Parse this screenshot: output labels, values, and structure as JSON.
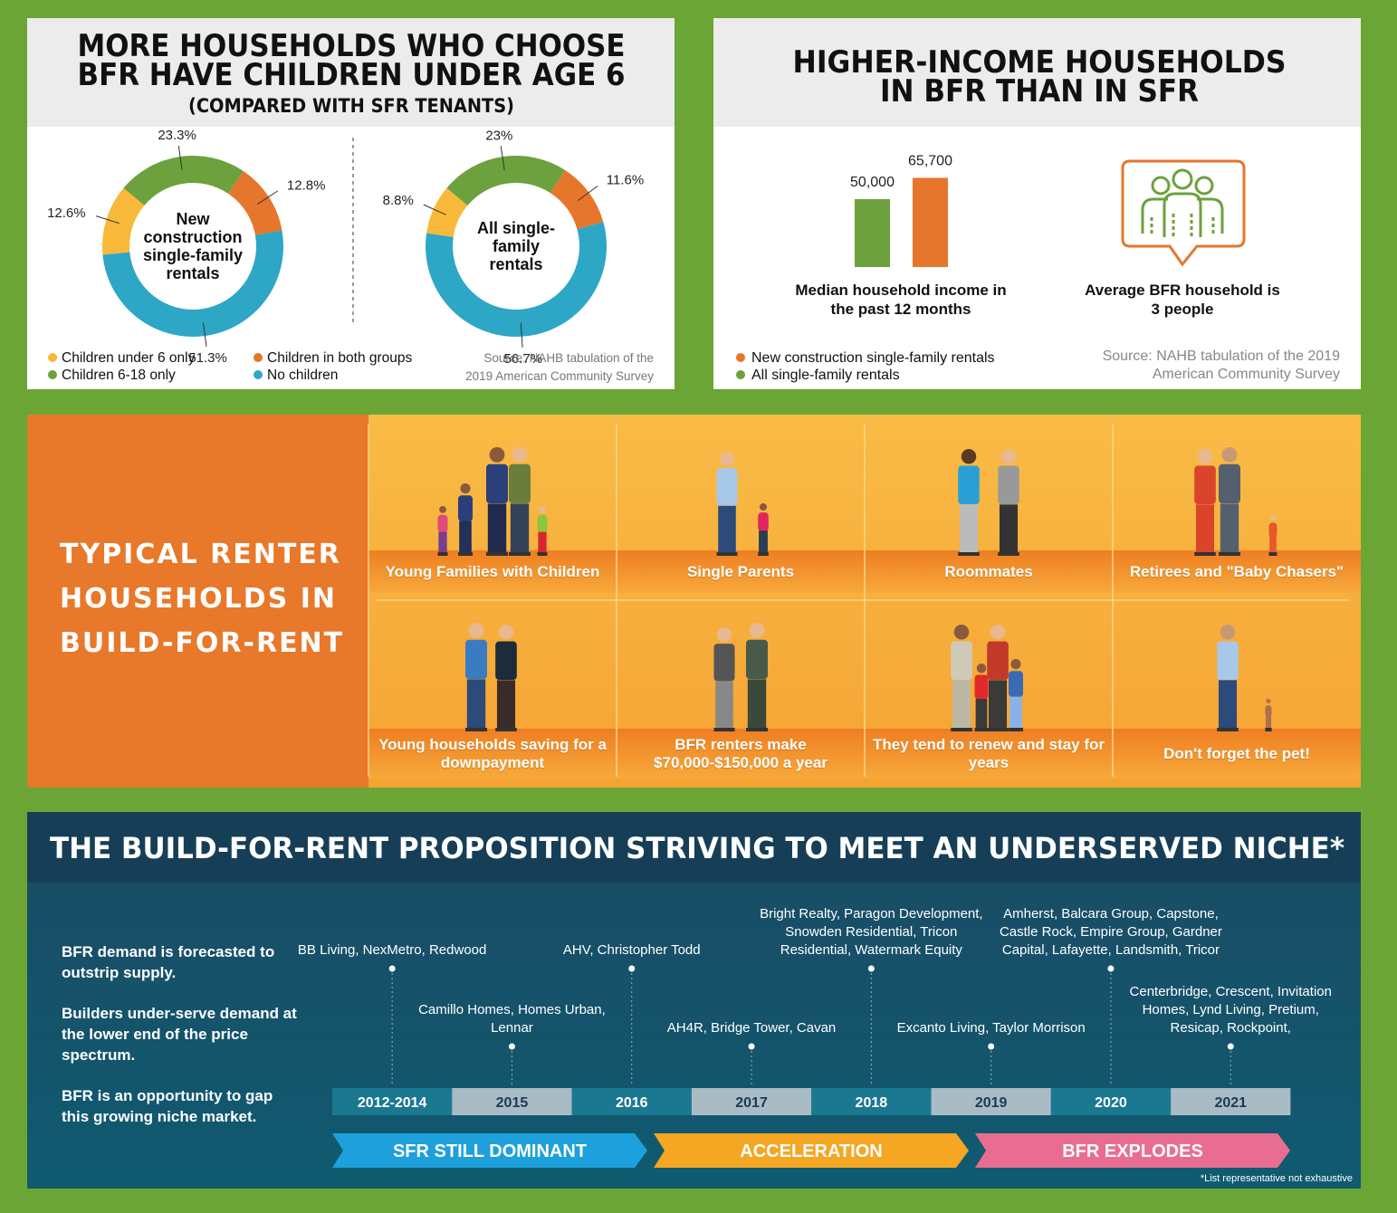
{
  "panels": [
    {
      "title": [
        "MORE HOUSEHOLDS WHO CHOOSE",
        "BFR HAVE CHILDREN UNDER AGE 6"
      ],
      "subtitle": "(COMPARED WITH SFR TENANTS)",
      "source": "Source: NAHB tabulation of the 2019 American Community Survey"
    },
    {
      "title": [
        "HIGHER-INCOME HOUSEHOLDS",
        "IN BFR THAN IN SFR"
      ],
      "note": "Average BFR household is 3 people",
      "source": "Source: NAHB tabulation of the 2019 American Community Survey"
    }
  ],
  "chart_data": [
    {
      "type": "donut",
      "title": "New construction single-family rentals",
      "categories": [
        "Children under 6 only",
        "Children 6-18 only",
        "Children in both groups",
        "No children"
      ],
      "colors": [
        "#f8b93b",
        "#6ca13d",
        "#e6762b",
        "#2ea6c6"
      ],
      "values": [
        12.6,
        23.3,
        12.8,
        51.3
      ],
      "value_labels": [
        "12.6%",
        "23.3%",
        "12.8%",
        "51.3%"
      ]
    },
    {
      "type": "donut",
      "title": "All single-family rentals",
      "categories": [
        "Children under 6 only",
        "Children 6-18 only",
        "Children in both groups",
        "No children"
      ],
      "colors": [
        "#f8b93b",
        "#6ca13d",
        "#e6762b",
        "#2ea6c6"
      ],
      "values": [
        8.8,
        23,
        11.6,
        56.7
      ],
      "value_labels": [
        "8.8%",
        "23%",
        "11.6%",
        "56.7%"
      ]
    },
    {
      "type": "bar",
      "categories": [
        "Median household income in the past 12 months"
      ],
      "series": [
        {
          "name": "All single-family rentals",
          "color": "#6ca13d",
          "values": [
            50000
          ],
          "value_labels": [
            "50,000"
          ]
        },
        {
          "name": "New construction single-family rentals",
          "color": "#e6762b",
          "values": [
            65700
          ],
          "value_labels": [
            "65,700"
          ]
        }
      ]
    }
  ],
  "renters": {
    "title": "TYPICAL RENTER HOUSEHOLDS IN BUILD-FOR-RENT",
    "groups": [
      "Young Families with Children",
      "Single Parents",
      "Roommates",
      "Retirees and \"Baby Chasers\"",
      "Young households saving for a downpayment",
      "BFR renters make $70,000-$150,000 a year",
      "They tend to renew and stay for years",
      "Don't forget the pet!"
    ]
  },
  "timeline": {
    "title": "THE BUILD-FOR-RENT PROPOSITION STRIVING TO MEET AN UNDERSERVED NICHE*",
    "notes": [
      "BFR demand is forecasted to outstrip supply.",
      "Builders under-serve demand at the lower end of the price spectrum.",
      "BFR is an opportunity to gap this growing niche market."
    ],
    "years": [
      {
        "year": "2012-2014",
        "companies": "BB Living, NexMetro, Redwood"
      },
      {
        "year": "2015",
        "companies": "Camillo Homes, Homes Urban, Lennar"
      },
      {
        "year": "2016",
        "companies": "AHV, Christopher Todd"
      },
      {
        "year": "2017",
        "companies": "AH4R, Bridge Tower, Cavan"
      },
      {
        "year": "2018",
        "companies": "Bright Realty, Paragon Development, Snowden Residential, Tricon Residential, Watermark Equity"
      },
      {
        "year": "2019",
        "companies": "Excanto Living, Taylor Morrison"
      },
      {
        "year": "2020",
        "companies": "Amherst, Balcara Group, Capstone, Castle Rock, Empire Group, Gardner Capital, Lafayette, Landsmith, Tricor"
      },
      {
        "year": "2021",
        "companies": "Centerbridge, Crescent, Invitation Homes, Lynd Living, Pretium, Resicap, Rockpoint,"
      }
    ],
    "phases": [
      "SFR STILL DOMINANT",
      "ACCELERATION",
      "BFR EXPLODES"
    ],
    "footnote": "*List representative not exhaustive"
  }
}
